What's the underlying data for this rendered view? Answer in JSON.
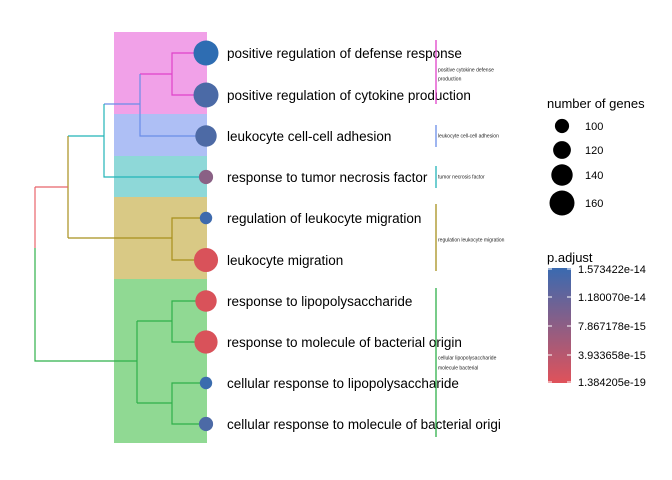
{
  "chart_data": {
    "type": "treeplot",
    "terms": [
      {
        "label": "positive regulation of defense response",
        "count": 160,
        "p_adjust": 1.573422e-14,
        "color": "#2e6db2"
      },
      {
        "label": "positive regulation of cytokine production",
        "count": 160,
        "p_adjust": 1.32e-14,
        "color": "#4b6aa6"
      },
      {
        "label": "leukocyte cell-cell adhesion",
        "count": 140,
        "p_adjust": 1.3e-14,
        "color": "#4d6aa5"
      },
      {
        "label": "response to tumor necrosis factor",
        "count": 100,
        "p_adjust": 9.5e-15,
        "color": "#8a6185"
      },
      {
        "label": "regulation of leukocyte migration",
        "count": 90,
        "p_adjust": 1.4e-14,
        "color": "#3e6aad"
      },
      {
        "label": "leukocyte migration",
        "count": 155,
        "p_adjust": 1e-17,
        "color": "#d9525a"
      },
      {
        "label": "response to lipopolysaccharide",
        "count": 140,
        "p_adjust": 1e-17,
        "color": "#d9525a"
      },
      {
        "label": "response to molecule of bacterial origin",
        "count": 150,
        "p_adjust": 1e-17,
        "color": "#d9525a"
      },
      {
        "label": "cellular response to lipopolysaccharide",
        "count": 90,
        "p_adjust": 1.45e-14,
        "color": "#3a6cae"
      },
      {
        "label": "cellular response to molecule of bacterial origi",
        "count": 100,
        "p_adjust": 1.3e-14,
        "color": "#4c6aa6"
      }
    ],
    "clusters": [
      {
        "lines": [
          "positive cytokine defense",
          "production"
        ],
        "terms": [
          0,
          1
        ],
        "band_color": "#f1a1e8",
        "line_color": "#e042c9"
      },
      {
        "lines": [
          "leukocyte cell-cell adhesion"
        ],
        "terms": [
          2
        ],
        "band_color": "#aebff5",
        "line_color": "#6a8de8"
      },
      {
        "lines": [
          "tumor necrosis factor"
        ],
        "terms": [
          3
        ],
        "band_color": "#8ed8d8",
        "line_color": "#22b4b8"
      },
      {
        "lines": [
          "regulation leukocyte migration"
        ],
        "terms": [
          4,
          5
        ],
        "band_color": "#d9c985",
        "line_color": "#a8901c"
      },
      {
        "lines": [
          "cellular lipopolysaccharide",
          "molecule bacterial"
        ],
        "terms": [
          6,
          7,
          8,
          9
        ],
        "band_color": "#90d993",
        "line_color": "#2fb04a"
      }
    ],
    "size_legend": {
      "title": "number of genes",
      "values": [
        100,
        120,
        140,
        160
      ]
    },
    "color_legend": {
      "title": "p.adjust",
      "labels": [
        "1.573422e-14",
        "1.180070e-14",
        "7.867178e-15",
        "3.933658e-15",
        "1.384205e-19"
      ],
      "high_color": "#3a6ab0",
      "low_color": "#e0525a"
    }
  }
}
